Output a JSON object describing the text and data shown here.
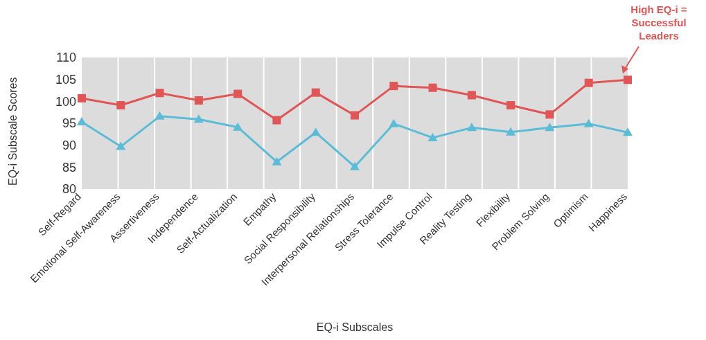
{
  "chart_data": {
    "type": "line",
    "xlabel": "EQ-i Subscales",
    "ylabel": "EQ-i Subscale Scores",
    "categories": [
      "Self-Regard",
      "Emotional Self-Awareness",
      "Assertiveness",
      "Independence",
      "Self-Actualization",
      "Empathy",
      "Social Responsibility",
      "Interpersonal Relationships",
      "Stress Tolerance",
      "Impulse Control",
      "Reality Testing",
      "Flexibility",
      "Problem Solving",
      "Optimism",
      "Happiness"
    ],
    "series": [
      {
        "color": "#e05555",
        "marker": "square",
        "values": [
          100.7,
          99.1,
          101.9,
          100.2,
          101.7,
          95.7,
          102,
          96.8,
          103.5,
          103.1,
          101.4,
          99.1,
          97,
          104.2,
          104.9
        ]
      },
      {
        "color": "#5bbcd6",
        "marker": "triangle",
        "values": [
          95.3,
          89.7,
          96.6,
          95.9,
          94.1,
          86.2,
          92.9,
          85.1,
          94.9,
          91.7,
          94,
          93,
          94,
          94.9,
          92.9
        ]
      }
    ],
    "ylim": [
      80,
      110
    ],
    "yticks": [
      80,
      85,
      90,
      95,
      100,
      105,
      110
    ],
    "grid": "x",
    "legend": false,
    "annotations": [
      "High EQ-i = Successful Leaders"
    ]
  }
}
